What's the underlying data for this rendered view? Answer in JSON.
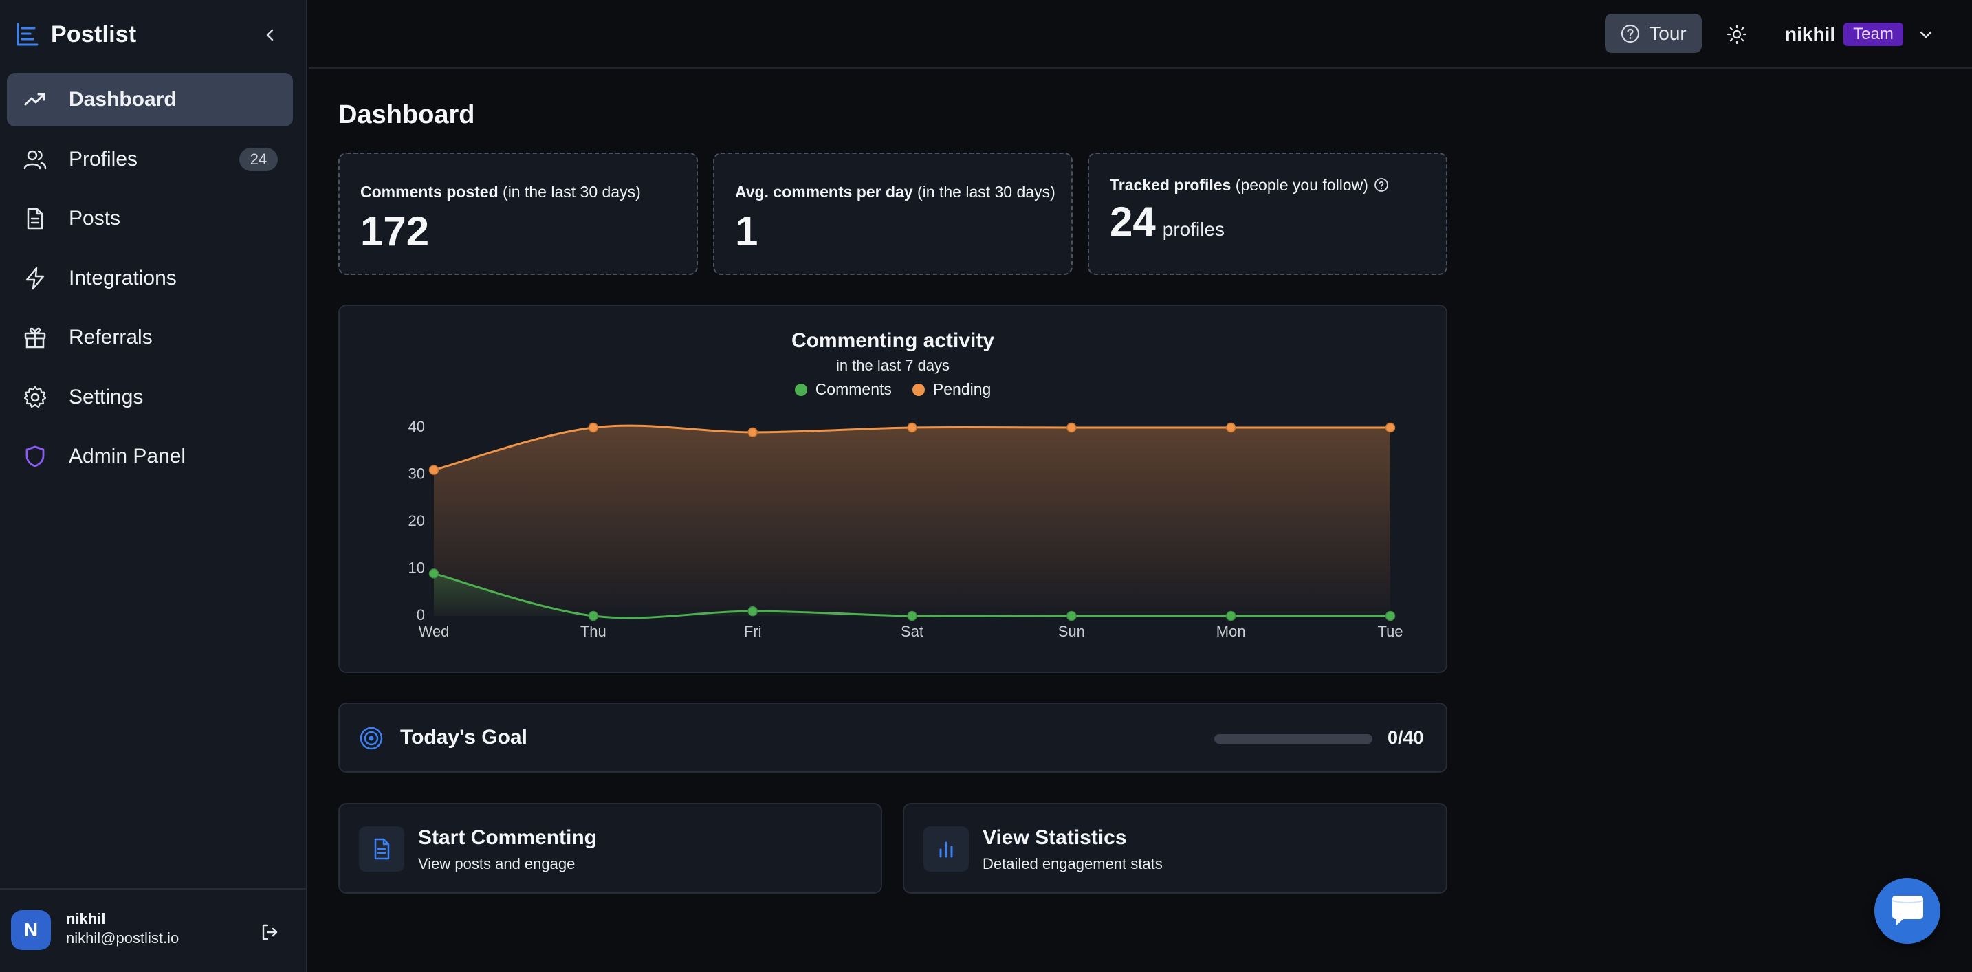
{
  "brand": {
    "name": "Postlist"
  },
  "sidebar": {
    "items": [
      {
        "label": "Dashboard",
        "icon": "trending-up-icon",
        "active": true
      },
      {
        "label": "Profiles",
        "icon": "users-icon",
        "badge": "24"
      },
      {
        "label": "Posts",
        "icon": "document-icon"
      },
      {
        "label": "Integrations",
        "icon": "lightning-icon"
      },
      {
        "label": "Referrals",
        "icon": "gift-icon"
      },
      {
        "label": "Settings",
        "icon": "gear-icon"
      },
      {
        "label": "Admin Panel",
        "icon": "shield-icon"
      }
    ],
    "user": {
      "initial": "N",
      "name": "nikhil",
      "email": "nikhil@postlist.io"
    }
  },
  "topbar": {
    "tour_label": "Tour",
    "user_name": "nikhil",
    "plan_badge": "Team"
  },
  "page": {
    "title": "Dashboard"
  },
  "stats": [
    {
      "label_bold": "Comments posted",
      "label_rest": " (in the last 30 days)",
      "value": "172",
      "suffix": ""
    },
    {
      "label_bold": "Avg. comments per day",
      "label_rest": " (in the last 30 days)",
      "value": "1",
      "suffix": ""
    },
    {
      "label_bold": "Tracked profiles",
      "label_rest": " (people you follow)",
      "value": "24",
      "suffix": "profiles"
    }
  ],
  "goal": {
    "title": "Today's Goal",
    "count": "0/40",
    "progress": 0
  },
  "actions": [
    {
      "title": "Start Commenting",
      "subtitle": "View posts and engage",
      "icon": "document-icon"
    },
    {
      "title": "View Statistics",
      "subtitle": "Detailed engagement stats",
      "icon": "bar-chart-icon"
    }
  ],
  "colors": {
    "accent": "#2e72d9",
    "comments": "#4caf50",
    "pending": "#f0944a",
    "team_badge": "#5b21b6"
  },
  "chart_data": {
    "type": "area",
    "title": "Commenting activity",
    "subtitle": "in the last 7 days",
    "categories": [
      "Wed",
      "Thu",
      "Fri",
      "Sat",
      "Sun",
      "Mon",
      "Tue"
    ],
    "series": [
      {
        "name": "Comments",
        "color": "#4caf50",
        "values": [
          9,
          0,
          1,
          0,
          0,
          0,
          0
        ]
      },
      {
        "name": "Pending",
        "color": "#f0944a",
        "values": [
          31,
          40,
          39,
          40,
          40,
          40,
          40
        ]
      }
    ],
    "yticks": [
      0,
      10,
      20,
      30,
      40
    ],
    "ylim": [
      0,
      40
    ],
    "legend": "top-center",
    "grid": false
  }
}
